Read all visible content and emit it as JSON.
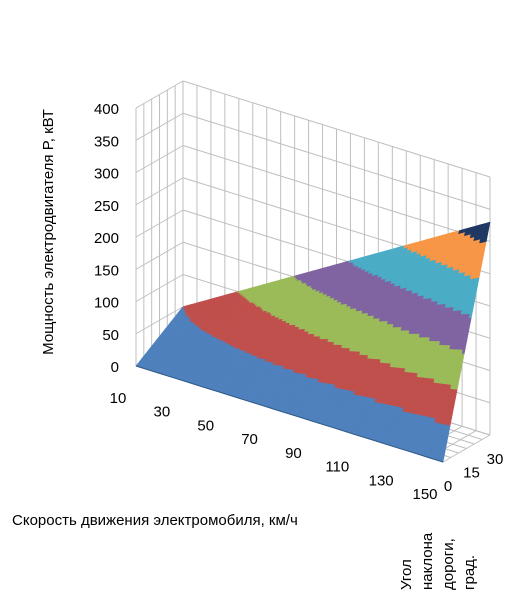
{
  "chart_data": {
    "type": "surface",
    "title": "",
    "ylabel": "Мощность электродвигателя P, кВТ",
    "xlabel": "Скорость движения электромобиля, км/ч",
    "zlabel_lines": [
      "Угол",
      "наклона",
      "дороги,",
      "град."
    ],
    "y_ticks": [
      "0",
      "50",
      "100",
      "150",
      "200",
      "250",
      "300",
      "350",
      "400"
    ],
    "x_ticks": [
      "10",
      "30",
      "50",
      "70",
      "90",
      "110",
      "130",
      "150"
    ],
    "z_ticks": [
      "0",
      "15",
      "30"
    ],
    "ylim": [
      0,
      400
    ],
    "xlim": [
      10,
      150
    ],
    "zlim": [
      0,
      30
    ],
    "grid": true,
    "bands": [
      {
        "range": "0-50",
        "color": "#4f81bd"
      },
      {
        "range": "50-100",
        "color": "#c0504d"
      },
      {
        "range": "100-150",
        "color": "#9bbb59"
      },
      {
        "range": "150-200",
        "color": "#8064a2"
      },
      {
        "range": "200-250",
        "color": "#4bacc6"
      },
      {
        "range": "250-300",
        "color": "#f79646"
      },
      {
        "range": "300-350",
        "color": "#1f3864"
      }
    ],
    "surface_points": [
      {
        "speed": 10,
        "angle": 0,
        "power": 0
      },
      {
        "speed": 150,
        "angle": 0,
        "power": 0
      },
      {
        "speed": 10,
        "angle": 30,
        "power": 50
      },
      {
        "speed": 150,
        "angle": 30,
        "power": 330
      }
    ]
  }
}
